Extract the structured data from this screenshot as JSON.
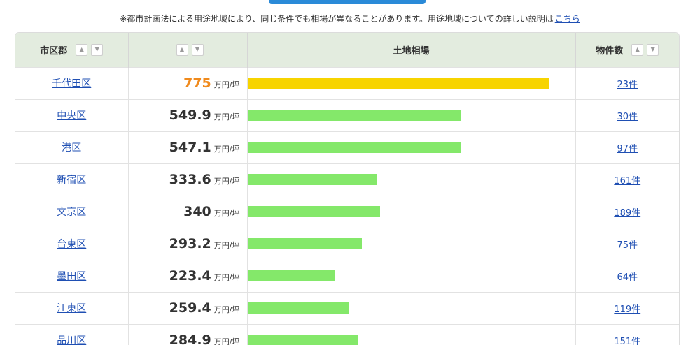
{
  "notice": {
    "text": "※都市計画法による用途地域により、同じ条件でも相場が異なることがあります。用途地域についての詳しい説明は",
    "link": "こちら"
  },
  "table": {
    "headers": {
      "city": "市区郡",
      "price": "",
      "land_price": "土地相場",
      "count": "物件数"
    },
    "sort_up": "▲",
    "sort_down": "▼",
    "unit": "万円/坪",
    "max_value": 775,
    "rows": [
      {
        "city": "千代田区",
        "price": "775",
        "value": 775,
        "count": "23件",
        "top": true
      },
      {
        "city": "中央区",
        "price": "549.9",
        "value": 549.9,
        "count": "30件",
        "top": false
      },
      {
        "city": "港区",
        "price": "547.1",
        "value": 547.1,
        "count": "97件",
        "top": false
      },
      {
        "city": "新宿区",
        "price": "333.6",
        "value": 333.6,
        "count": "161件",
        "top": false
      },
      {
        "city": "文京区",
        "price": "340",
        "value": 340,
        "count": "189件",
        "top": false
      },
      {
        "city": "台東区",
        "price": "293.2",
        "value": 293.2,
        "count": "75件",
        "top": false
      },
      {
        "city": "墨田区",
        "price": "223.4",
        "value": 223.4,
        "count": "64件",
        "top": false
      },
      {
        "city": "江東区",
        "price": "259.4",
        "value": 259.4,
        "count": "119件",
        "top": false
      },
      {
        "city": "品川区",
        "price": "284.9",
        "value": 284.9,
        "count": "151件",
        "top": false
      }
    ]
  },
  "colors": {
    "top_bar": "#f7d400",
    "bar": "#84e86a",
    "top_price": "#f08a1c",
    "link": "#1f4fb3",
    "header_bg": "#e3ecdf"
  }
}
